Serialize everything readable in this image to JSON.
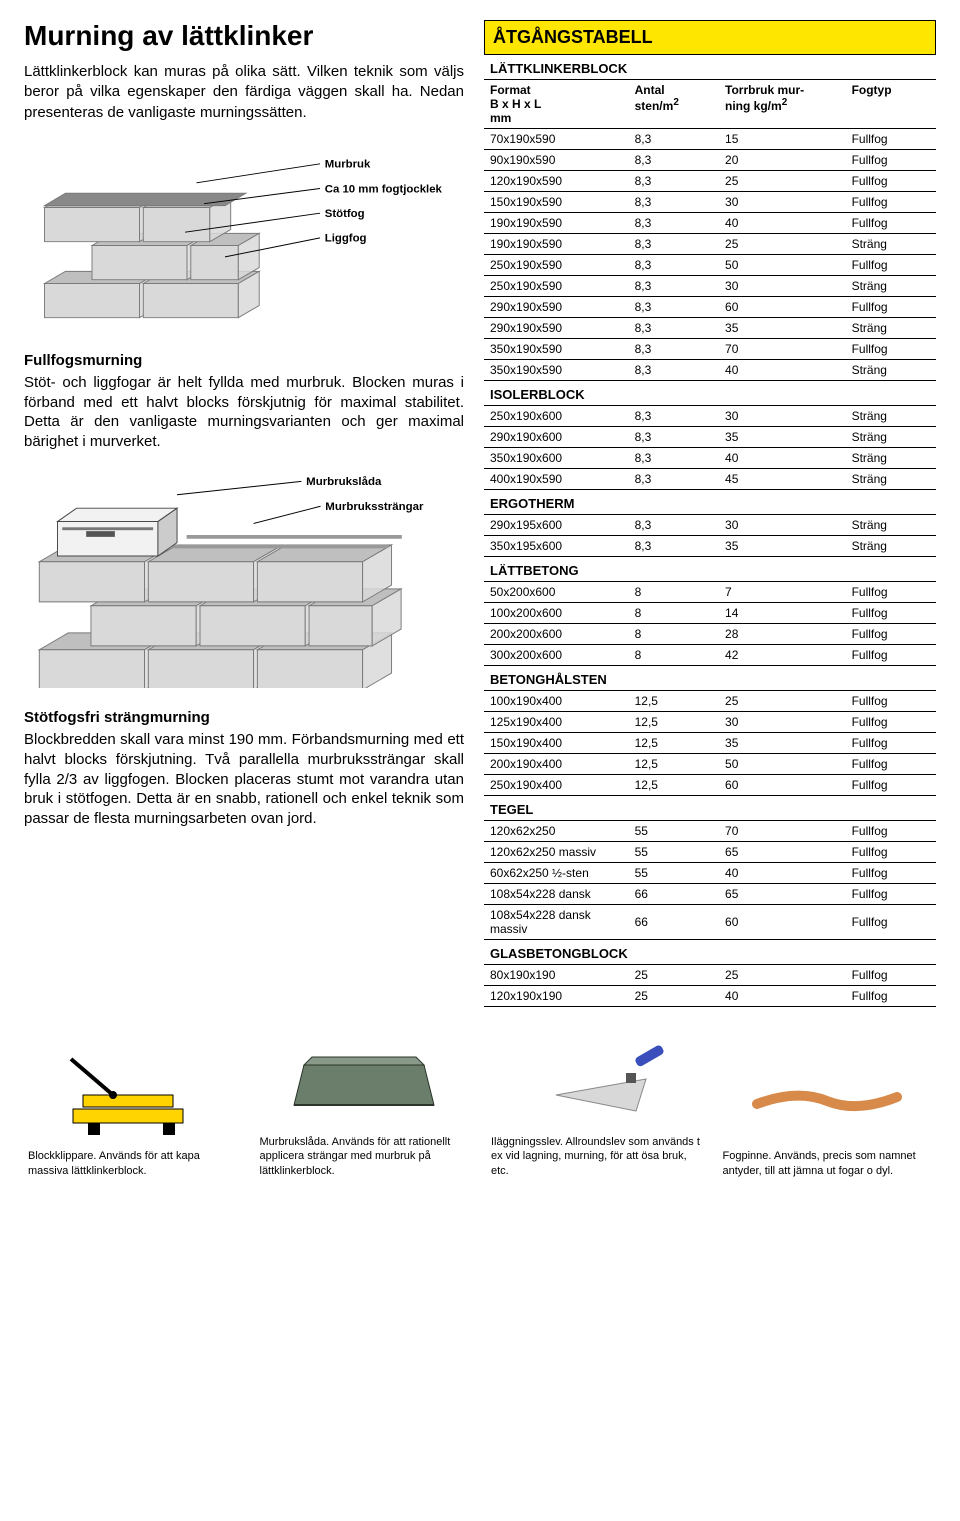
{
  "title": "Murning av lättklinker",
  "intro": "Lättklinkerblock kan muras på olika sätt. Vilken teknik som väljs beror på vilka egenskaper den färdiga väggen skall ha. Nedan presenteras de vanligaste murningssätten.",
  "diagram1": {
    "labels": [
      "Murbruk",
      "Ca 10 mm fogtjocklek",
      "Stötfog",
      "Liggfog"
    ],
    "block_fill": "#d9d9d9",
    "block_stroke": "#7a7a7a",
    "top_fill": "#bfbfbf",
    "mortar_fill": "#888888"
  },
  "section1_title": "Fullfogsmurning",
  "section1_text": "Stöt- och liggfogar är helt fyllda med murbruk. Blocken muras i förband med ett halvt blocks förskjutnig för maximal stabilitet. Detta är den vanligaste murningsvarianten och ger maximal bärighet i murverket.",
  "diagram2": {
    "labels": [
      "Murbrukslåda",
      "Murbrukssträngar"
    ],
    "block_fill": "#d9d9d9",
    "block_stroke": "#7a7a7a",
    "top_fill": "#bfbfbf",
    "box_fill": "#f2f2f2"
  },
  "section2_title": "Stötfogsfri strängmurning",
  "section2_text": "Blockbredden skall vara minst 190 mm. Förbandsmurning med ett halvt blocks förskjutning. Två parallella murbrukssträngar skall fylla 2/3 av liggfogen. Blocken placeras stumt mot varandra utan bruk i stötfogen. Detta är en snabb, rationell och enkel teknik som passar de flesta murningsarbeten ovan jord.",
  "table_title": "ÅTGÅNGSTABELL",
  "columns": [
    "Format\nB x H x L\nmm",
    "Antal\nsten/m2",
    "Torrbruk mur-\nning kg/m2",
    "Fogtyp"
  ],
  "sections": [
    {
      "name": "LÄTTKLINKERBLOCK",
      "rows": [
        [
          "70x190x590",
          "8,3",
          "15",
          "Fullfog"
        ],
        [
          "90x190x590",
          "8,3",
          "20",
          "Fullfog"
        ],
        [
          "120x190x590",
          "8,3",
          "25",
          "Fullfog"
        ],
        [
          "150x190x590",
          "8,3",
          "30",
          "Fullfog"
        ],
        [
          "190x190x590",
          "8,3",
          "40",
          "Fullfog"
        ],
        [
          "190x190x590",
          "8,3",
          "25",
          "Sträng"
        ],
        [
          "250x190x590",
          "8,3",
          "50",
          "Fullfog"
        ],
        [
          "250x190x590",
          "8,3",
          "30",
          "Sträng"
        ],
        [
          "290x190x590",
          "8,3",
          "60",
          "Fullfog"
        ],
        [
          "290x190x590",
          "8,3",
          "35",
          "Sträng"
        ],
        [
          "350x190x590",
          "8,3",
          "70",
          "Fullfog"
        ],
        [
          "350x190x590",
          "8,3",
          "40",
          "Sträng"
        ]
      ]
    },
    {
      "name": "ISOLERBLOCK",
      "rows": [
        [
          "250x190x600",
          "8,3",
          "30",
          "Sträng"
        ],
        [
          "290x190x600",
          "8,3",
          "35",
          "Sträng"
        ],
        [
          "350x190x600",
          "8,3",
          "40",
          "Sträng"
        ],
        [
          "400x190x590",
          "8,3",
          "45",
          "Sträng"
        ]
      ]
    },
    {
      "name": "ERGOTHERM",
      "rows": [
        [
          "290x195x600",
          "8,3",
          "30",
          "Sträng"
        ],
        [
          "350x195x600",
          "8,3",
          "35",
          "Sträng"
        ]
      ]
    },
    {
      "name": "LÄTTBETONG",
      "rows": [
        [
          "50x200x600",
          "8",
          "7",
          "Fullfog"
        ],
        [
          "100x200x600",
          "8",
          "14",
          "Fullfog"
        ],
        [
          "200x200x600",
          "8",
          "28",
          "Fullfog"
        ],
        [
          "300x200x600",
          "8",
          "42",
          "Fullfog"
        ]
      ]
    },
    {
      "name": "BETONGHÅLSTEN",
      "rows": [
        [
          "100x190x400",
          "12,5",
          "25",
          "Fullfog"
        ],
        [
          "125x190x400",
          "12,5",
          "30",
          "Fullfog"
        ],
        [
          "150x190x400",
          "12,5",
          "35",
          "Fullfog"
        ],
        [
          "200x190x400",
          "12,5",
          "50",
          "Fullfog"
        ],
        [
          "250x190x400",
          "12,5",
          "60",
          "Fullfog"
        ]
      ]
    },
    {
      "name": "TEGEL",
      "rows": [
        [
          "120x62x250",
          "55",
          "70",
          "Fullfog"
        ],
        [
          "120x62x250 massiv",
          "55",
          "65",
          "Fullfog"
        ],
        [
          "60x62x250 ½-sten",
          "55",
          "40",
          "Fullfog"
        ],
        [
          "108x54x228 dansk",
          "66",
          "65",
          "Fullfog"
        ],
        [
          "108x54x228 dansk massiv",
          "66",
          "60",
          "Fullfog"
        ]
      ]
    },
    {
      "name": "GLASBETONGBLOCK",
      "rows": [
        [
          "80x190x190",
          "25",
          "25",
          "Fullfog"
        ],
        [
          "120x190x190",
          "25",
          "40",
          "Fullfog"
        ]
      ]
    }
  ],
  "tools": [
    {
      "caption": "Blockklippare. Används för att kapa massiva lättklinkerblock.",
      "color": "#ffd400"
    },
    {
      "caption": "Murbrukslåda. Används för att rationellt applicera strängar med murbruk på lättklinkerblock.",
      "color": "#6b7d6b"
    },
    {
      "caption": "Iläggningsslev. Allroundslev som används t ex vid lagning, murning, för att ösa bruk, etc.",
      "color": "#d8d8d8"
    },
    {
      "caption": "Fogpinne. Används, precis som namnet antyder, till att jämna ut fogar o dyl.",
      "color": "#d88a4a"
    }
  ]
}
